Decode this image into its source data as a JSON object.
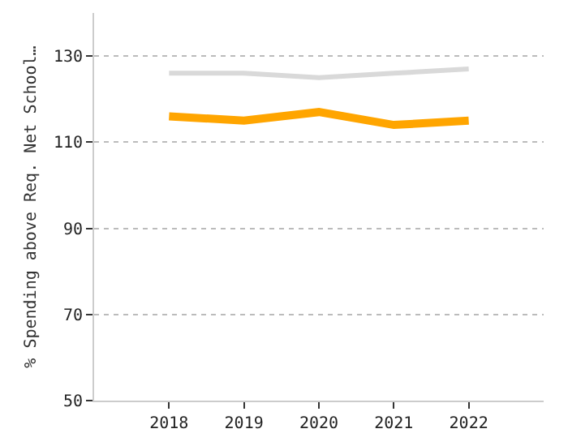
{
  "chart_data": {
    "type": "line",
    "ylabel": "% Spending above Req. Net School…",
    "x": [
      2018,
      2019,
      2020,
      2021,
      2022
    ],
    "xlim": [
      2017,
      2023
    ],
    "xticks": [
      2018,
      2019,
      2020,
      2021,
      2022
    ],
    "ylim": [
      50,
      140
    ],
    "yticks": [
      50,
      70,
      90,
      110,
      130
    ],
    "grid": "y",
    "marker": "none",
    "line_style": "solid",
    "series": [
      {
        "color": "#d9d9d9",
        "values": [
          126,
          126,
          125,
          126,
          127
        ]
      },
      {
        "color": "#ffa500",
        "values": [
          116,
          115,
          117,
          114,
          115
        ]
      }
    ]
  }
}
